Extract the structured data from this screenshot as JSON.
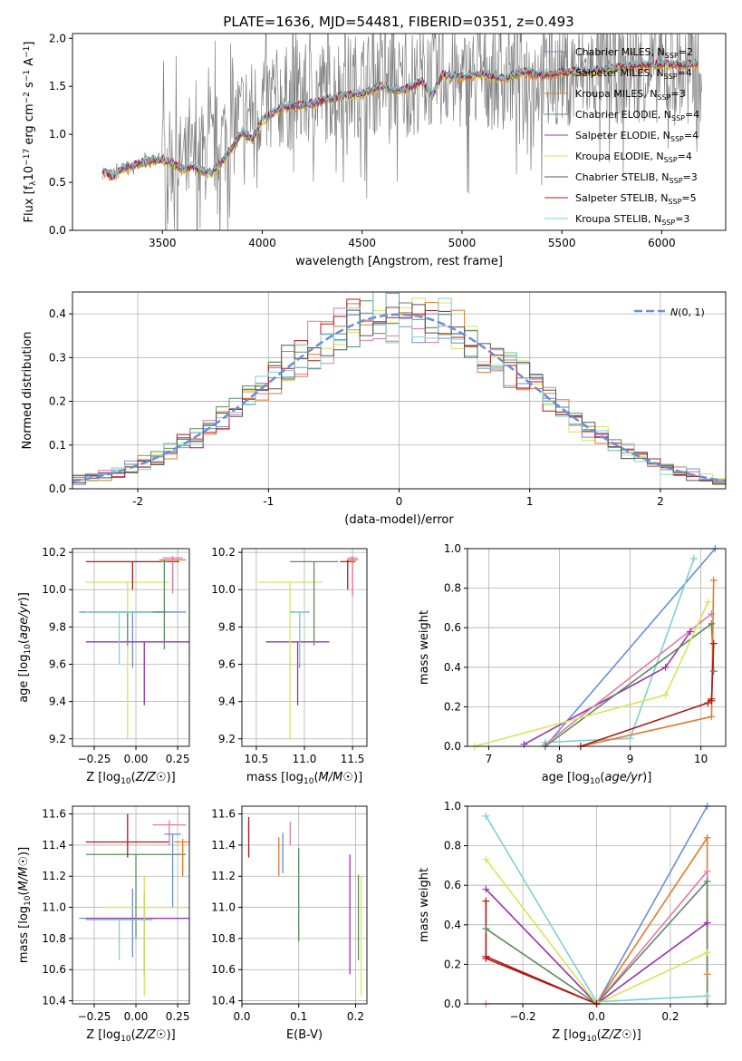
{
  "palette": {
    "chabrier_miles": "#6a8fd6",
    "salpeter_miles": "#e07b2a",
    "kroupa_miles": "#d8833a",
    "chabrier_elodie": "#5e8c5e",
    "salpeter_elodie": "#9b30b0",
    "kroupa_elodie": "#d4e65a",
    "chabrier_stelib": "#555555",
    "salpeter_stelib": "#b01818",
    "kroupa_stelib": "#7fd0d0",
    "pink": "#e07aa8",
    "gaussian": "#6a8fd6"
  },
  "chart_data": [
    {
      "id": "spectrum",
      "type": "line",
      "title": "PLATE=1636, MJD=54481, FIBERID=0351, z=0.493",
      "xlabel": "wavelength [Angstrom, rest frame]",
      "ylabel": "Flux [f$_\\lambda$10$^{-17}$ erg cm$^{-2}$ s$^{-1}$ A$^{-1}$]",
      "xlim": [
        3050,
        6320
      ],
      "ylim": [
        0,
        2.05
      ],
      "xticks": [
        3500,
        4000,
        4500,
        5000,
        5500,
        6000
      ],
      "yticks": [
        0.0,
        0.5,
        1.0,
        1.5,
        2.0
      ],
      "grid": false,
      "legend_position": "top-right",
      "legend": [
        {
          "label": "Chabrier MILES, N",
          "sub": "SSP",
          "suffix": "=2",
          "color_key": "chabrier_miles"
        },
        {
          "label": "Salpeter MILES, N",
          "sub": "SSP",
          "suffix": "=4",
          "color_key": "salpeter_miles"
        },
        {
          "label": "Kroupa MILES, N",
          "sub": "SSP",
          "suffix": "=3",
          "color_key": "kroupa_miles"
        },
        {
          "label": "Chabrier ELODIE, N",
          "sub": "SSP",
          "suffix": "=4",
          "color_key": "chabrier_elodie"
        },
        {
          "label": "Salpeter ELODIE, N",
          "sub": "SSP",
          "suffix": "=4",
          "color_key": "salpeter_elodie"
        },
        {
          "label": "Kroupa ELODIE, N",
          "sub": "SSP",
          "suffix": "=4",
          "color_key": "kroupa_elodie"
        },
        {
          "label": "Chabrier STELIB, N",
          "sub": "SSP",
          "suffix": "=3",
          "color_key": "chabrier_stelib"
        },
        {
          "label": "Salpeter STELIB, N",
          "sub": "SSP",
          "suffix": "=5",
          "color_key": "salpeter_stelib"
        },
        {
          "label": "Kroupa STELIB, N",
          "sub": "SSP",
          "suffix": "=3",
          "color_key": "kroupa_stelib"
        }
      ],
      "data_spectrum": {
        "x": [
          3200,
          3300,
          3400,
          3500,
          3600,
          3700,
          3800,
          3900,
          4000,
          4100,
          4200,
          4300,
          4400,
          4500,
          4600,
          4700,
          4800,
          4900,
          5000,
          5100,
          5200,
          5300,
          5400,
          5500,
          5600,
          5700,
          5800,
          5900,
          6000,
          6100,
          6200
        ],
        "y": [
          0.58,
          0.62,
          0.72,
          0.76,
          0.72,
          0.74,
          0.95,
          1.2,
          1.3,
          1.38,
          1.38,
          1.45,
          1.5,
          1.52,
          1.55,
          1.5,
          1.58,
          1.62,
          1.55,
          1.6,
          1.58,
          1.62,
          1.6,
          1.65,
          1.62,
          1.66,
          1.64,
          1.68,
          1.65,
          1.62,
          1.66
        ],
        "noise": 0.55
      },
      "model_spectrum": {
        "x": [
          3200,
          3250,
          3300,
          3400,
          3500,
          3600,
          3650,
          3700,
          3750,
          3800,
          3900,
          3950,
          4000,
          4100,
          4200,
          4300,
          4400,
          4500,
          4600,
          4700,
          4800,
          4850,
          4900,
          5000,
          5100,
          5200,
          5300,
          5400,
          5500,
          5600,
          5700,
          5800,
          5900,
          6000,
          6100,
          6200
        ],
        "y": [
          0.62,
          0.55,
          0.65,
          0.7,
          0.74,
          0.64,
          0.66,
          0.62,
          0.6,
          0.72,
          1.02,
          0.95,
          1.15,
          1.28,
          1.3,
          1.35,
          1.4,
          1.42,
          1.5,
          1.45,
          1.55,
          1.4,
          1.62,
          1.6,
          1.63,
          1.58,
          1.65,
          1.62,
          1.64,
          1.66,
          1.68,
          1.7,
          1.72,
          1.73,
          1.72,
          1.74
        ]
      }
    },
    {
      "id": "residuals",
      "type": "histogram",
      "xlabel": "(data-model)/error",
      "ylabel": "Normed distribution",
      "xlim": [
        -2.5,
        2.5
      ],
      "ylim": [
        0,
        0.45
      ],
      "xticks": [
        -2,
        -1,
        0,
        1,
        2
      ],
      "yticks": [
        0.0,
        0.1,
        0.2,
        0.3,
        0.4
      ],
      "grid": true,
      "legend_position": "top-right",
      "gaussian_label": "N(0,1)",
      "bin_width": 0.1
    },
    {
      "id": "age_vs_Z",
      "type": "errorbar",
      "xlabel": "Z [log10(Z/Z☉)]",
      "ylabel": "age [log10(age/yr)]",
      "xlim": [
        -0.38,
        0.32
      ],
      "ylim": [
        9.16,
        10.22
      ],
      "xticks": [
        -0.25,
        0.0,
        0.25
      ],
      "yticks": [
        9.2,
        9.4,
        9.6,
        9.8,
        10.0,
        10.2
      ],
      "grid": true,
      "points": [
        {
          "x": -0.02,
          "xerr": 0.32,
          "y": 9.88,
          "ylo": 9.58,
          "yhi": 9.88,
          "color_key": "chabrier_miles"
        },
        {
          "x": 0.05,
          "xerr": 0.35,
          "y": 9.72,
          "ylo": 9.38,
          "yhi": 9.72,
          "color_key": "salpeter_elodie"
        },
        {
          "x": -0.05,
          "xerr": 0.25,
          "y": 10.04,
          "ylo": 9.2,
          "yhi": 10.04,
          "color_key": "kroupa_elodie"
        },
        {
          "x": -0.05,
          "xerr": 0.23,
          "y": 9.88,
          "ylo": 9.7,
          "yhi": 9.88,
          "color_key": "chabrier_elodie"
        },
        {
          "x": -0.1,
          "xerr": 0.2,
          "y": 9.88,
          "ylo": 9.6,
          "yhi": 9.88,
          "color_key": "kroupa_stelib"
        },
        {
          "x": -0.02,
          "xerr": 0.28,
          "y": 10.15,
          "ylo": 10.0,
          "yhi": 10.15,
          "color_key": "salpeter_stelib"
        },
        {
          "x": 0.22,
          "xerr": 0.08,
          "y": 10.16,
          "ylo": 10.0,
          "yhi": 10.17,
          "color_key": "salpeter_miles"
        },
        {
          "x": 0.22,
          "xerr": 0.06,
          "y": 10.17,
          "ylo": 9.98,
          "yhi": 10.18,
          "color_key": "pink"
        },
        {
          "x": 0.17,
          "xerr": 0.02,
          "y": 10.15,
          "ylo": 9.68,
          "yhi": 10.16,
          "color_key": "chabrier_elodie"
        }
      ]
    },
    {
      "id": "age_vs_mass",
      "type": "errorbar",
      "xlabel": "mass [log10(M/M☉)]",
      "ylabel": "",
      "xlim": [
        10.35,
        11.65
      ],
      "ylim": [
        9.16,
        10.22
      ],
      "xticks": [
        10.5,
        11.0,
        11.5
      ],
      "yticks": [
        9.2,
        9.4,
        9.6,
        9.8,
        10.0,
        10.2
      ],
      "grid": true,
      "points": [
        {
          "x": 10.95,
          "xerr": 0.1,
          "y": 9.88,
          "ylo": 9.58,
          "yhi": 9.88,
          "color_key": "chabrier_miles"
        },
        {
          "x": 10.93,
          "xerr": 0.33,
          "y": 9.72,
          "ylo": 9.38,
          "yhi": 9.72,
          "color_key": "salpeter_elodie"
        },
        {
          "x": 10.85,
          "xerr": 0.33,
          "y": 10.04,
          "ylo": 9.2,
          "yhi": 10.04,
          "color_key": "kroupa_elodie"
        },
        {
          "x": 11.1,
          "xerr": 0.25,
          "y": 10.15,
          "ylo": 9.7,
          "yhi": 10.15,
          "color_key": "chabrier_elodie"
        },
        {
          "x": 10.95,
          "xerr": 0.08,
          "y": 9.88,
          "ylo": 9.6,
          "yhi": 9.88,
          "color_key": "kroupa_stelib"
        },
        {
          "x": 11.45,
          "xerr": 0.08,
          "y": 10.15,
          "ylo": 10.0,
          "yhi": 10.16,
          "color_key": "salpeter_stelib"
        },
        {
          "x": 11.5,
          "xerr": 0.06,
          "y": 10.16,
          "ylo": 9.98,
          "yhi": 10.17,
          "color_key": "salpeter_miles"
        },
        {
          "x": 11.5,
          "xerr": 0.05,
          "y": 10.17,
          "ylo": 9.96,
          "yhi": 10.18,
          "color_key": "pink"
        }
      ]
    },
    {
      "id": "mass_weight_vs_age",
      "type": "line",
      "xlabel": "age [log10(age/yr)]",
      "ylabel": "mass weight",
      "xlim": [
        6.7,
        10.35
      ],
      "ylim": [
        0,
        1.0
      ],
      "xticks": [
        7,
        8,
        9,
        10
      ],
      "yticks": [
        0.0,
        0.2,
        0.4,
        0.6,
        0.8,
        1.0
      ],
      "grid": true,
      "series": [
        {
          "color_key": "chabrier_miles",
          "x": [
            7.8,
            10.2
          ],
          "y": [
            0.0,
            1.0
          ]
        },
        {
          "color_key": "kroupa_stelib",
          "x": [
            7.8,
            9.0,
            9.9
          ],
          "y": [
            0.02,
            0.04,
            0.95
          ]
        },
        {
          "color_key": "salpeter_elodie",
          "x": [
            7.5,
            9.5,
            9.85
          ],
          "y": [
            0.01,
            0.4,
            0.58
          ]
        },
        {
          "color_key": "pink",
          "x": [
            7.8,
            10.15
          ],
          "y": [
            0.01,
            0.67
          ]
        },
        {
          "color_key": "chabrier_elodie",
          "x": [
            7.8,
            10.15,
            10.18
          ],
          "y": [
            0.0,
            0.62,
            0.38
          ]
        },
        {
          "color_key": "kroupa_elodie",
          "x": [
            6.8,
            9.5,
            10.1
          ],
          "y": [
            0.0,
            0.26,
            0.73
          ]
        },
        {
          "color_key": "salpeter_miles",
          "x": [
            8.3,
            10.15,
            10.18
          ],
          "y": [
            0.0,
            0.15,
            0.84
          ]
        },
        {
          "color_key": "salpeter_stelib",
          "x": [
            8.3,
            10.1,
            10.15,
            10.18,
            10.15
          ],
          "y": [
            0.0,
            0.22,
            0.24,
            0.52,
            0.23
          ]
        }
      ]
    },
    {
      "id": "mass_vs_Z",
      "type": "errorbar",
      "xlabel": "Z [log10(Z/Z☉)]",
      "ylabel": "mass [log10(M/M☉)]",
      "xlim": [
        -0.38,
        0.32
      ],
      "ylim": [
        10.38,
        11.65
      ],
      "xticks": [
        -0.25,
        0.0,
        0.25
      ],
      "yticks": [
        10.4,
        10.6,
        10.8,
        11.0,
        11.2,
        11.4,
        11.6
      ],
      "grid": true,
      "points": [
        {
          "x": -0.02,
          "xerr": 0.32,
          "y": 10.93,
          "ylo": 10.68,
          "yhi": 11.12,
          "color_key": "chabrier_miles"
        },
        {
          "x": 0.05,
          "xerr": 0.35,
          "y": 10.93,
          "ylo": 10.57,
          "yhi": 11.1,
          "color_key": "salpeter_elodie"
        },
        {
          "x": 0.05,
          "xerr": 0.25,
          "y": 11.0,
          "ylo": 10.43,
          "yhi": 11.2,
          "color_key": "kroupa_elodie"
        },
        {
          "x": 0.0,
          "xerr": 0.3,
          "y": 11.34,
          "ylo": 10.8,
          "yhi": 11.34,
          "color_key": "chabrier_elodie"
        },
        {
          "x": -0.1,
          "xerr": 0.2,
          "y": 10.92,
          "ylo": 10.66,
          "yhi": 10.92,
          "color_key": "kroupa_stelib"
        },
        {
          "x": -0.05,
          "xerr": 0.25,
          "y": 11.42,
          "ylo": 11.32,
          "yhi": 11.6,
          "color_key": "salpeter_stelib"
        },
        {
          "x": 0.28,
          "xerr": 0.05,
          "y": 11.42,
          "ylo": 11.2,
          "yhi": 11.44,
          "color_key": "salpeter_miles"
        },
        {
          "x": 0.2,
          "xerr": 0.1,
          "y": 11.53,
          "ylo": 11.4,
          "yhi": 11.56,
          "color_key": "pink"
        },
        {
          "x": 0.22,
          "xerr": 0.05,
          "y": 11.47,
          "ylo": 11.0,
          "yhi": 11.47,
          "color_key": "chabrier_miles"
        }
      ]
    },
    {
      "id": "mass_vs_ebv",
      "type": "errorbar",
      "xlabel": "E(B-V)",
      "ylabel": "",
      "xlim": [
        0.0,
        0.22
      ],
      "ylim": [
        10.38,
        11.65
      ],
      "xticks": [
        0.0,
        0.1,
        0.2
      ],
      "yticks": [
        10.4,
        10.6,
        10.8,
        11.0,
        11.2,
        11.4,
        11.6
      ],
      "grid": true,
      "points": [
        {
          "x": 0.012,
          "ylo": 11.32,
          "yhi": 11.58,
          "color_key": "salpeter_stelib"
        },
        {
          "x": 0.065,
          "ylo": 11.2,
          "yhi": 11.45,
          "color_key": "salpeter_miles"
        },
        {
          "x": 0.072,
          "ylo": 11.22,
          "yhi": 11.48,
          "color_key": "chabrier_miles"
        },
        {
          "x": 0.085,
          "ylo": 11.4,
          "yhi": 11.55,
          "color_key": "pink"
        },
        {
          "x": 0.1,
          "ylo": 10.78,
          "yhi": 11.38,
          "color_key": "chabrier_elodie"
        },
        {
          "x": 0.19,
          "ylo": 10.57,
          "yhi": 11.34,
          "color_key": "salpeter_elodie"
        },
        {
          "x": 0.205,
          "ylo": 10.66,
          "yhi": 11.21,
          "color_key": "chabrier_elodie"
        },
        {
          "x": 0.21,
          "ylo": 10.43,
          "yhi": 11.2,
          "color_key": "kroupa_elodie"
        }
      ]
    },
    {
      "id": "mass_weight_vs_Z",
      "type": "line",
      "xlabel": "Z [log10(Z/Z☉)]",
      "ylabel": "mass weight",
      "xlim": [
        -0.35,
        0.35
      ],
      "ylim": [
        0,
        1.0
      ],
      "xticks": [
        -0.2,
        0.0,
        0.2
      ],
      "yticks": [
        0.0,
        0.2,
        0.4,
        0.6,
        0.8,
        1.0
      ],
      "grid": true,
      "series": [
        {
          "color_key": "chabrier_miles",
          "x": [
            0.0,
            0.3
          ],
          "y": [
            0.0,
            1.0
          ]
        },
        {
          "color_key": "salpeter_miles",
          "x": [
            0.0,
            0.3,
            0.3
          ],
          "y": [
            0.0,
            0.84,
            0.15
          ]
        },
        {
          "color_key": "pink",
          "x": [
            -0.3,
            0.0,
            0.3,
            0.3
          ],
          "y": [
            0.0,
            0.0,
            0.67,
            0.0
          ]
        },
        {
          "color_key": "chabrier_elodie",
          "x": [
            -0.3,
            0.0,
            0.3,
            0.3
          ],
          "y": [
            0.38,
            0.0,
            0.62,
            0.0
          ]
        },
        {
          "color_key": "salpeter_elodie",
          "x": [
            -0.3,
            0.0,
            0.3
          ],
          "y": [
            0.58,
            0.0,
            0.41
          ]
        },
        {
          "color_key": "kroupa_elodie",
          "x": [
            -0.3,
            0.0,
            0.3
          ],
          "y": [
            0.73,
            0.0,
            0.26
          ]
        },
        {
          "color_key": "kroupa_stelib",
          "x": [
            -0.3,
            0.0,
            0.3
          ],
          "y": [
            0.95,
            0.01,
            0.04
          ]
        },
        {
          "color_key": "salpeter_stelib",
          "x": [
            -0.3,
            0.0,
            -0.3,
            -0.3
          ],
          "y": [
            0.24,
            0.0,
            0.23,
            0.52
          ]
        }
      ]
    }
  ]
}
